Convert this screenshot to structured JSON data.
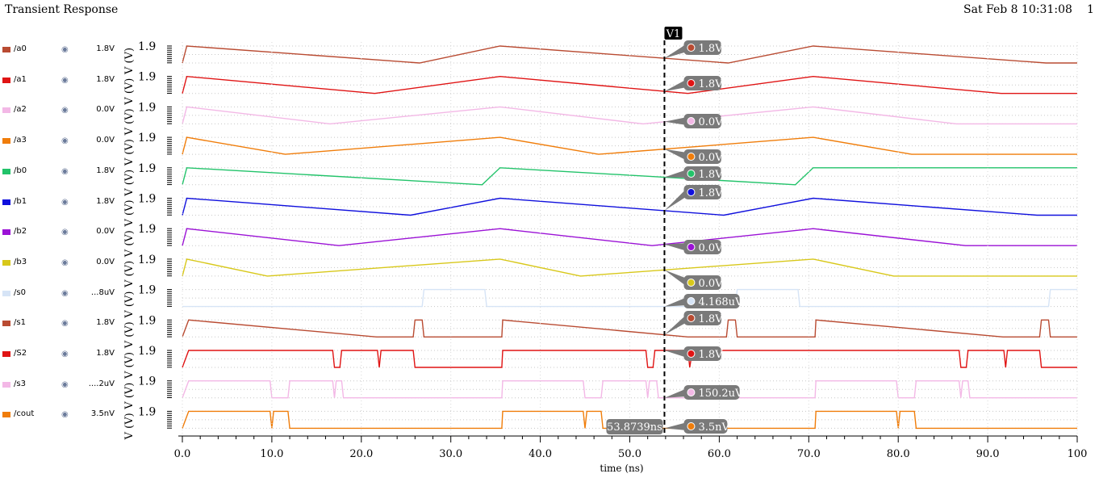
{
  "window": {
    "title": "Transient Response",
    "datetime": "Sat Feb 8 10:31:08",
    "page_number": "1"
  },
  "colors": {
    "a0": "#b94b32",
    "a1": "#e01414",
    "a2": "#f3b8e6",
    "a3": "#f07d0a",
    "b0": "#22c36a",
    "b1": "#1010dd",
    "b2": "#9b12d6",
    "b3": "#d8c81a",
    "s0": "#d6e4f6",
    "s1": "#b94b32",
    "S2": "#e01414",
    "s3": "#f3b8e6",
    "cout": "#f07d0a",
    "marker_bg": "#7a7a7a",
    "cursor": "#000000"
  },
  "cursor": {
    "label": "V1",
    "time_ns": 53.8739,
    "time_label": "53.8739ns"
  },
  "chart_data": {
    "type": "line",
    "xlabel": "time (ns)",
    "xlim": [
      0,
      100
    ],
    "x_ticks": [
      "0.0",
      "10.0",
      "20.0",
      "30.0",
      "40.0",
      "50.0",
      "60.0",
      "70.0",
      "80.0",
      "90.0",
      "100"
    ],
    "y_tick_label": "1.9",
    "y_axis_label": "V (V)",
    "series": [
      {
        "name": "/a0",
        "legend_value": "1.8V",
        "marker_label": "1.8V",
        "segments": [
          [
            0,
            0
          ],
          [
            0.5,
            1.8
          ],
          [
            26.5,
            0
          ],
          [
            35.5,
            1.8
          ],
          [
            61,
            0
          ],
          [
            70.5,
            1.8
          ],
          [
            96.5,
            0
          ],
          [
            100,
            0
          ]
        ]
      },
      {
        "name": "/a1",
        "legend_value": "1.8V",
        "marker_label": "1.8V",
        "segments": [
          [
            0,
            0
          ],
          [
            0.5,
            1.8
          ],
          [
            21.5,
            0
          ],
          [
            35.5,
            1.8
          ],
          [
            56.5,
            0
          ],
          [
            70.5,
            1.8
          ],
          [
            91.5,
            0
          ],
          [
            100,
            0
          ]
        ]
      },
      {
        "name": "/a2",
        "legend_value": "0.0V",
        "marker_label": "0.0V",
        "segments": [
          [
            0,
            0
          ],
          [
            0.5,
            1.8
          ],
          [
            16.5,
            0
          ],
          [
            35.5,
            1.8
          ],
          [
            51.5,
            0
          ],
          [
            70.5,
            1.8
          ],
          [
            86.5,
            0
          ],
          [
            100,
            0
          ]
        ]
      },
      {
        "name": "/a3",
        "legend_value": "0.0V",
        "marker_label": "0.0V",
        "segments": [
          [
            0,
            0
          ],
          [
            0.5,
            1.8
          ],
          [
            11.5,
            0
          ],
          [
            35.5,
            1.8
          ],
          [
            46.5,
            0
          ],
          [
            70.5,
            1.8
          ],
          [
            81.5,
            0
          ],
          [
            100,
            0
          ]
        ]
      },
      {
        "name": "/b0",
        "legend_value": "1.8V",
        "marker_label": "1.8V",
        "segments": [
          [
            0,
            0
          ],
          [
            0.5,
            1.8
          ],
          [
            33.5,
            0
          ],
          [
            35.5,
            1.8
          ],
          [
            68.5,
            0
          ],
          [
            70.5,
            1.8
          ],
          [
            100,
            1.8
          ]
        ]
      },
      {
        "name": "/b1",
        "legend_value": "1.8V",
        "marker_label": "1.8V",
        "segments": [
          [
            0,
            0
          ],
          [
            0.5,
            1.8
          ],
          [
            25.5,
            0
          ],
          [
            35.5,
            1.8
          ],
          [
            60.5,
            0
          ],
          [
            70.5,
            1.8
          ],
          [
            95.5,
            0
          ],
          [
            100,
            0
          ]
        ]
      },
      {
        "name": "/b2",
        "legend_value": "0.0V",
        "marker_label": "0.0V",
        "segments": [
          [
            0,
            0
          ],
          [
            0.5,
            1.8
          ],
          [
            17.5,
            0
          ],
          [
            35.5,
            1.8
          ],
          [
            52.5,
            0
          ],
          [
            70.5,
            1.8
          ],
          [
            87.5,
            0
          ],
          [
            100,
            0
          ]
        ]
      },
      {
        "name": "/b3",
        "legend_value": "0.0V",
        "marker_label": "0.0V",
        "segments": [
          [
            0,
            0
          ],
          [
            0.5,
            1.8
          ],
          [
            9.5,
            0
          ],
          [
            35.5,
            1.8
          ],
          [
            44.5,
            0
          ],
          [
            70.5,
            1.8
          ],
          [
            79.5,
            0
          ],
          [
            100,
            0
          ]
        ]
      },
      {
        "name": "/s0",
        "legend_value": "...8uV",
        "marker_label": "4.168uV",
        "segments": [
          [
            0,
            0
          ],
          [
            26.8,
            0
          ],
          [
            27,
            1.8
          ],
          [
            33.8,
            1.8
          ],
          [
            34,
            0
          ],
          [
            61.8,
            0
          ],
          [
            62,
            1.8
          ],
          [
            68.8,
            1.8
          ],
          [
            69,
            0
          ],
          [
            96.8,
            0
          ],
          [
            97,
            1.8
          ],
          [
            100,
            1.8
          ]
        ]
      },
      {
        "name": "/s1",
        "legend_value": "1.8V",
        "marker_label": "1.8V",
        "segments": [
          [
            0,
            0
          ],
          [
            0.7,
            1.8
          ],
          [
            21.7,
            0
          ],
          [
            25.8,
            0
          ],
          [
            26,
            1.8
          ],
          [
            26.8,
            1.8
          ],
          [
            27,
            0
          ],
          [
            35.7,
            0
          ],
          [
            35.8,
            1.8
          ],
          [
            56.5,
            0
          ],
          [
            60.8,
            0
          ],
          [
            61,
            1.8
          ],
          [
            61.8,
            1.8
          ],
          [
            62,
            0
          ],
          [
            70.7,
            0
          ],
          [
            70.8,
            1.8
          ],
          [
            91.7,
            0
          ],
          [
            95.8,
            0
          ],
          [
            96,
            1.8
          ],
          [
            96.8,
            1.8
          ],
          [
            97,
            0
          ],
          [
            100,
            0
          ]
        ]
      },
      {
        "name": "/S2",
        "legend_value": "1.8V",
        "marker_label": "1.8V",
        "segments": [
          [
            0,
            0
          ],
          [
            0.7,
            1.8
          ],
          [
            16.8,
            1.8
          ],
          [
            17,
            0
          ],
          [
            17.6,
            0
          ],
          [
            17.8,
            1.8
          ],
          [
            21.8,
            1.8
          ],
          [
            22,
            0
          ],
          [
            22.2,
            1.8
          ],
          [
            25.8,
            1.8
          ],
          [
            26,
            0
          ],
          [
            35.7,
            0
          ],
          [
            35.8,
            1.8
          ],
          [
            51.8,
            1.8
          ],
          [
            52,
            0
          ],
          [
            52.6,
            0
          ],
          [
            52.8,
            1.8
          ],
          [
            56.5,
            1.8
          ],
          [
            56.7,
            0
          ],
          [
            57,
            1.8
          ],
          [
            86.8,
            1.8
          ],
          [
            87,
            0
          ],
          [
            87.6,
            0
          ],
          [
            87.8,
            1.8
          ],
          [
            91.8,
            1.8
          ],
          [
            92,
            0
          ],
          [
            92.2,
            1.8
          ],
          [
            95.8,
            1.8
          ],
          [
            96,
            0
          ],
          [
            100,
            0
          ]
        ]
      },
      {
        "name": "/s3",
        "legend_value": "....2uV",
        "marker_label": "150.2uV",
        "segments": [
          [
            0,
            0
          ],
          [
            0.7,
            1.8
          ],
          [
            9.8,
            1.8
          ],
          [
            10,
            0
          ],
          [
            11.8,
            0
          ],
          [
            12,
            1.8
          ],
          [
            16.8,
            1.8
          ],
          [
            17,
            0
          ],
          [
            17.2,
            1.8
          ],
          [
            17.8,
            1.8
          ],
          [
            18,
            0
          ],
          [
            35.7,
            0
          ],
          [
            35.8,
            1.8
          ],
          [
            44.8,
            1.8
          ],
          [
            45,
            0
          ],
          [
            46.8,
            0
          ],
          [
            47,
            1.8
          ],
          [
            51.8,
            1.8
          ],
          [
            52,
            0
          ],
          [
            52.2,
            1.8
          ],
          [
            53,
            1.8
          ],
          [
            53.2,
            0
          ],
          [
            70.7,
            0
          ],
          [
            70.8,
            1.8
          ],
          [
            79.8,
            1.8
          ],
          [
            80,
            0
          ],
          [
            81.8,
            0
          ],
          [
            82,
            1.8
          ],
          [
            86.8,
            1.8
          ],
          [
            87,
            0
          ],
          [
            87.2,
            1.8
          ],
          [
            87.8,
            1.8
          ],
          [
            88,
            0
          ],
          [
            100,
            0
          ]
        ]
      },
      {
        "name": "/cout",
        "legend_value": "3.5nV",
        "marker_label": "3.5nV",
        "segments": [
          [
            0,
            0
          ],
          [
            0.7,
            1.8
          ],
          [
            9.8,
            1.8
          ],
          [
            10,
            0
          ],
          [
            10.2,
            1.8
          ],
          [
            11.8,
            1.8
          ],
          [
            12,
            0
          ],
          [
            35.7,
            0
          ],
          [
            35.8,
            1.8
          ],
          [
            44.8,
            1.8
          ],
          [
            45,
            0
          ],
          [
            45.2,
            1.8
          ],
          [
            46.8,
            1.8
          ],
          [
            47,
            0
          ],
          [
            70.7,
            0
          ],
          [
            70.8,
            1.8
          ],
          [
            79.8,
            1.8
          ],
          [
            80,
            0
          ],
          [
            80.2,
            1.8
          ],
          [
            81.8,
            1.8
          ],
          [
            82,
            0
          ],
          [
            100,
            0
          ]
        ]
      }
    ]
  }
}
